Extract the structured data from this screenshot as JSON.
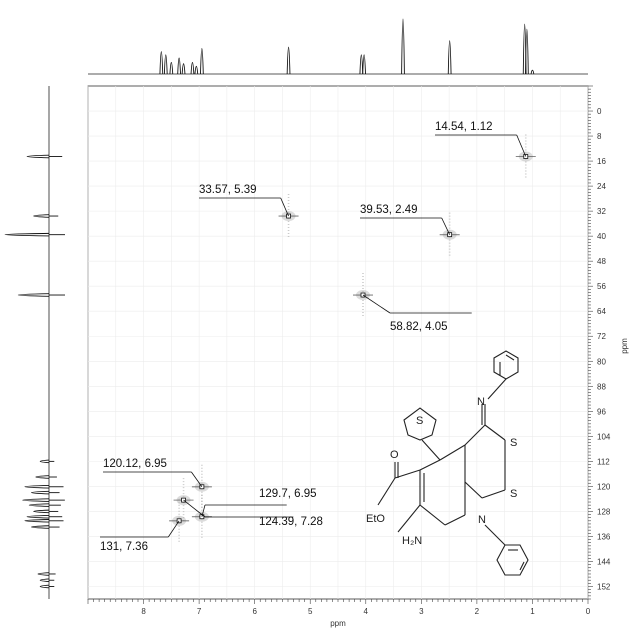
{
  "chart_data": {
    "type": "heatmap",
    "subtype": "2D NMR HSQC contour plot",
    "xlabel": "ppm",
    "ylabel": "ppm",
    "xlim": [
      9,
      0
    ],
    "ylim": [
      -8,
      156
    ],
    "x_ticks": [
      "8",
      "7",
      "6",
      "5",
      "4",
      "3",
      "2",
      "1",
      "0"
    ],
    "y_ticks": [
      "0",
      "8",
      "16",
      "24",
      "32",
      "40",
      "48",
      "56",
      "64",
      "72",
      "80",
      "88",
      "96",
      "104",
      "112",
      "120",
      "128",
      "136",
      "144",
      "152"
    ],
    "grid": true,
    "peaks": [
      {
        "label": "14.54, 1.12",
        "c": 14.54,
        "h": 1.12
      },
      {
        "label": "33.57, 5.39",
        "c": 33.57,
        "h": 5.39
      },
      {
        "label": "39.53, 2.49",
        "c": 39.53,
        "h": 2.49
      },
      {
        "label": "58.82, 4.05",
        "c": 58.82,
        "h": 4.05
      },
      {
        "label": "120.12, 6.95",
        "c": 120.12,
        "h": 6.95
      },
      {
        "label": "129.7, 6.95",
        "c": 129.7,
        "h": 6.95
      },
      {
        "label": "124.39, 7.28",
        "c": 124.39,
        "h": 7.28
      },
      {
        "label": "131, 7.36",
        "c": 131,
        "h": 7.36
      }
    ],
    "proton_projection": [
      {
        "ppm": 7.68,
        "height": 0.35
      },
      {
        "ppm": 7.6,
        "height": 0.3
      },
      {
        "ppm": 7.5,
        "height": 0.18
      },
      {
        "ppm": 7.36,
        "height": 0.25
      },
      {
        "ppm": 7.28,
        "height": 0.16
      },
      {
        "ppm": 7.12,
        "height": 0.18
      },
      {
        "ppm": 7.05,
        "height": 0.12
      },
      {
        "ppm": 6.95,
        "height": 0.4
      },
      {
        "ppm": 5.39,
        "height": 0.42
      },
      {
        "ppm": 4.08,
        "height": 0.3
      },
      {
        "ppm": 4.03,
        "height": 0.3
      },
      {
        "ppm": 3.33,
        "height": 0.86
      },
      {
        "ppm": 2.49,
        "height": 0.52
      },
      {
        "ppm": 1.14,
        "height": 0.78
      },
      {
        "ppm": 1.1,
        "height": 0.7
      },
      {
        "ppm": 1.0,
        "height": 0.06
      }
    ],
    "carbon_projection": [
      {
        "ppm": 14.54,
        "height": 0.5
      },
      {
        "ppm": 33.57,
        "height": 0.35
      },
      {
        "ppm": 39.53,
        "height": 1.0
      },
      {
        "ppm": 58.82,
        "height": 0.7
      },
      {
        "ppm": 112,
        "height": 0.2
      },
      {
        "ppm": 117,
        "height": 0.3
      },
      {
        "ppm": 120.12,
        "height": 0.55
      },
      {
        "ppm": 122,
        "height": 0.4
      },
      {
        "ppm": 124.39,
        "height": 0.6
      },
      {
        "ppm": 126,
        "height": 0.45
      },
      {
        "ppm": 128,
        "height": 0.35
      },
      {
        "ppm": 129.7,
        "height": 0.5
      },
      {
        "ppm": 131,
        "height": 0.55
      },
      {
        "ppm": 133,
        "height": 0.4
      },
      {
        "ppm": 148,
        "height": 0.25
      },
      {
        "ppm": 150,
        "height": 0.2
      },
      {
        "ppm": 152,
        "height": 0.2
      }
    ]
  },
  "structure": {
    "atom_labels": {
      "thiophene_s": "S",
      "imine_n": "N",
      "ring_s_top": "S",
      "ring_s_bottom": "S",
      "carbonyl_o": "O",
      "ester": "EtO",
      "ring_n": "N",
      "amine": "H₂N"
    }
  }
}
